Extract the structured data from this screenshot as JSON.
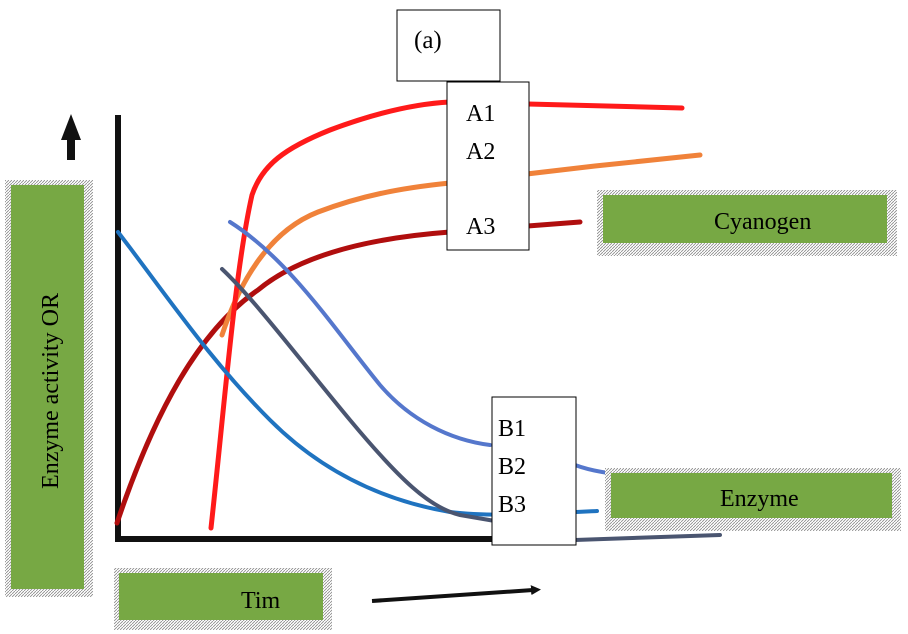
{
  "panel_label": "(a)",
  "y_axis_label": "Enzyme  activity  OR",
  "x_axis_label": "Tim",
  "curve_group_a": [
    "A1",
    "A2",
    "A3"
  ],
  "curve_group_b": [
    "B1",
    "B2",
    "B3"
  ],
  "legend_top": "Cyanogen",
  "legend_bottom": "Enzyme",
  "colors": {
    "label_box_fill": "#77a844",
    "curve_a1": "#ff1a1a",
    "curve_a2": "#f0823a",
    "curve_a3": "#b00e0e",
    "curve_b1": "#5577cc",
    "curve_b2": "#4a5570",
    "curve_b3": "#1f73c0",
    "axis": "#111111"
  }
}
